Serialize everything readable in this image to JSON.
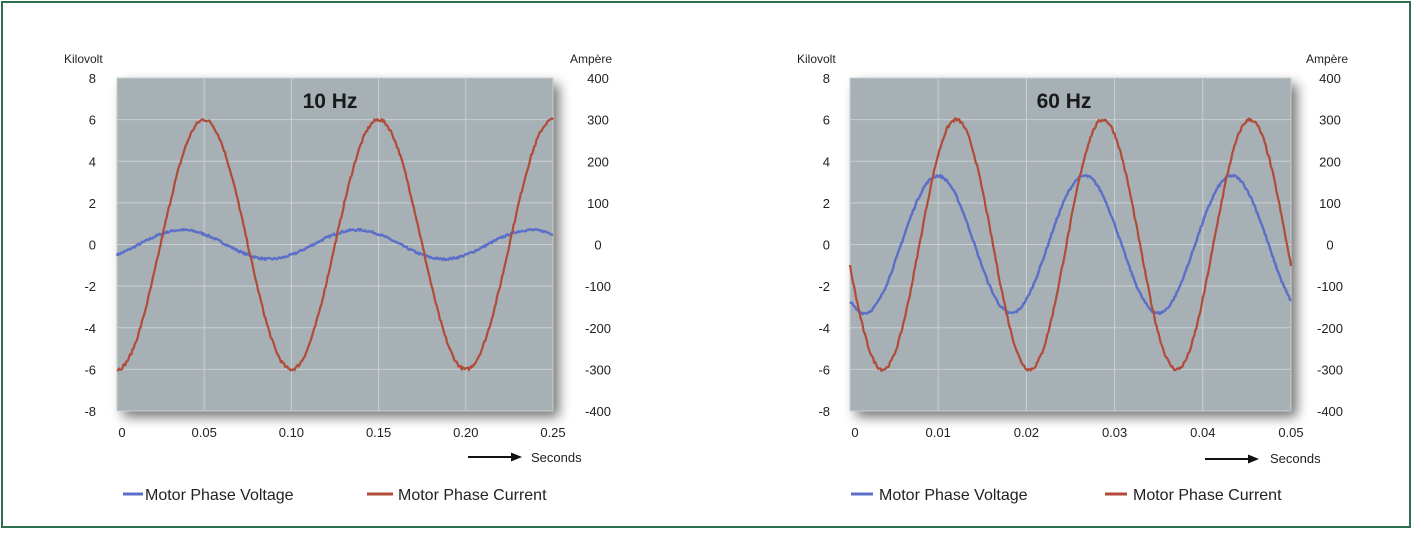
{
  "colors": {
    "frame": "#2e6e4e",
    "plot_bg": "#a7b0b4",
    "voltage": "#5b6fc9",
    "current": "#b14b3a",
    "grid": "#c9cfd2"
  },
  "chart_data": [
    {
      "type": "line",
      "title": "10 Hz",
      "ylabel_left": "Kilovolt",
      "ylabel_right": "Ampère",
      "xlabel": "Seconds",
      "xlim": [
        0,
        0.25
      ],
      "ylim_left": [
        -8,
        8
      ],
      "ylim_right": [
        -400,
        400
      ],
      "x_ticks": [
        "0",
        "0.05",
        "0.10",
        "0.15",
        "0.20",
        "0.25"
      ],
      "y_ticks_left": [
        "8",
        "6",
        "4",
        "2",
        "0",
        "-2",
        "-4",
        "-6",
        "-8"
      ],
      "y_ticks_right": [
        "400",
        "300",
        "200",
        "100",
        "0",
        "-100",
        "-200",
        "-300",
        "-400"
      ],
      "grid": true,
      "series": [
        {
          "name": "Motor Phase Voltage",
          "axis": "left",
          "waveform": "sine",
          "amplitude": 0.7,
          "frequency_hz": 10,
          "phase_deg": -45,
          "noise": 0.05
        },
        {
          "name": "Motor Phase Current",
          "axis": "right",
          "waveform": "sine",
          "amplitude": 300,
          "frequency_hz": 10,
          "phase_deg": -90,
          "noise": 4
        }
      ],
      "legend": [
        "Motor Phase Voltage",
        "Motor Phase Current"
      ],
      "legend_position": "bottom"
    },
    {
      "type": "line",
      "title": "60 Hz",
      "ylabel_left": "Kilovolt",
      "ylabel_right": "Ampère",
      "xlabel": "Seconds",
      "xlim": [
        0,
        0.05
      ],
      "ylim_left": [
        -8,
        8
      ],
      "ylim_right": [
        -400,
        400
      ],
      "x_ticks": [
        "0",
        "0.01",
        "0.02",
        "0.03",
        "0.04",
        "0.05"
      ],
      "y_ticks_left": [
        "8",
        "6",
        "4",
        "2",
        "0",
        "-2",
        "-4",
        "-6",
        "-8"
      ],
      "y_ticks_right": [
        "400",
        "300",
        "200",
        "100",
        "0",
        "-100",
        "-200",
        "-300",
        "-400"
      ],
      "grid": true,
      "series": [
        {
          "name": "Motor Phase Voltage",
          "axis": "left",
          "waveform": "sine",
          "amplitude": 3.3,
          "frequency_hz": 60,
          "phase_deg": -125,
          "noise": 0.06
        },
        {
          "name": "Motor Phase Current",
          "axis": "right",
          "waveform": "sine",
          "amplitude": 300,
          "frequency_hz": 60,
          "phase_deg": -170,
          "noise": 4
        }
      ],
      "legend": [
        "Motor Phase Voltage",
        "Motor Phase Current"
      ],
      "legend_position": "bottom"
    }
  ]
}
